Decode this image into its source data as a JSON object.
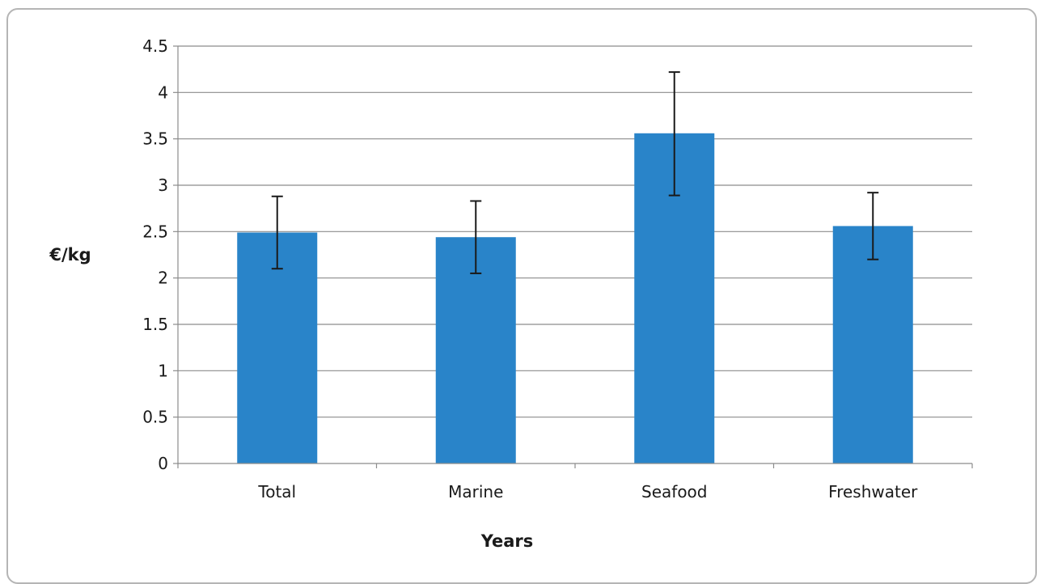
{
  "chart_data": {
    "type": "bar",
    "categories": [
      "Total",
      "Marine",
      "Seafood",
      "Freshwater"
    ],
    "values": [
      2.49,
      2.44,
      3.56,
      2.56
    ],
    "error_low": [
      2.1,
      2.05,
      2.89,
      2.2
    ],
    "error_high": [
      2.88,
      2.83,
      4.22,
      2.92
    ],
    "xlabel": "Years",
    "ylabel": "€/kg",
    "ylim": [
      0,
      4.5
    ],
    "yticks": [
      "0",
      "0.5",
      "1",
      "1.5",
      "2",
      "2.5",
      "3",
      "3.5",
      "4",
      "4.5"
    ],
    "grid": true,
    "bar_color": "#2984c9"
  }
}
